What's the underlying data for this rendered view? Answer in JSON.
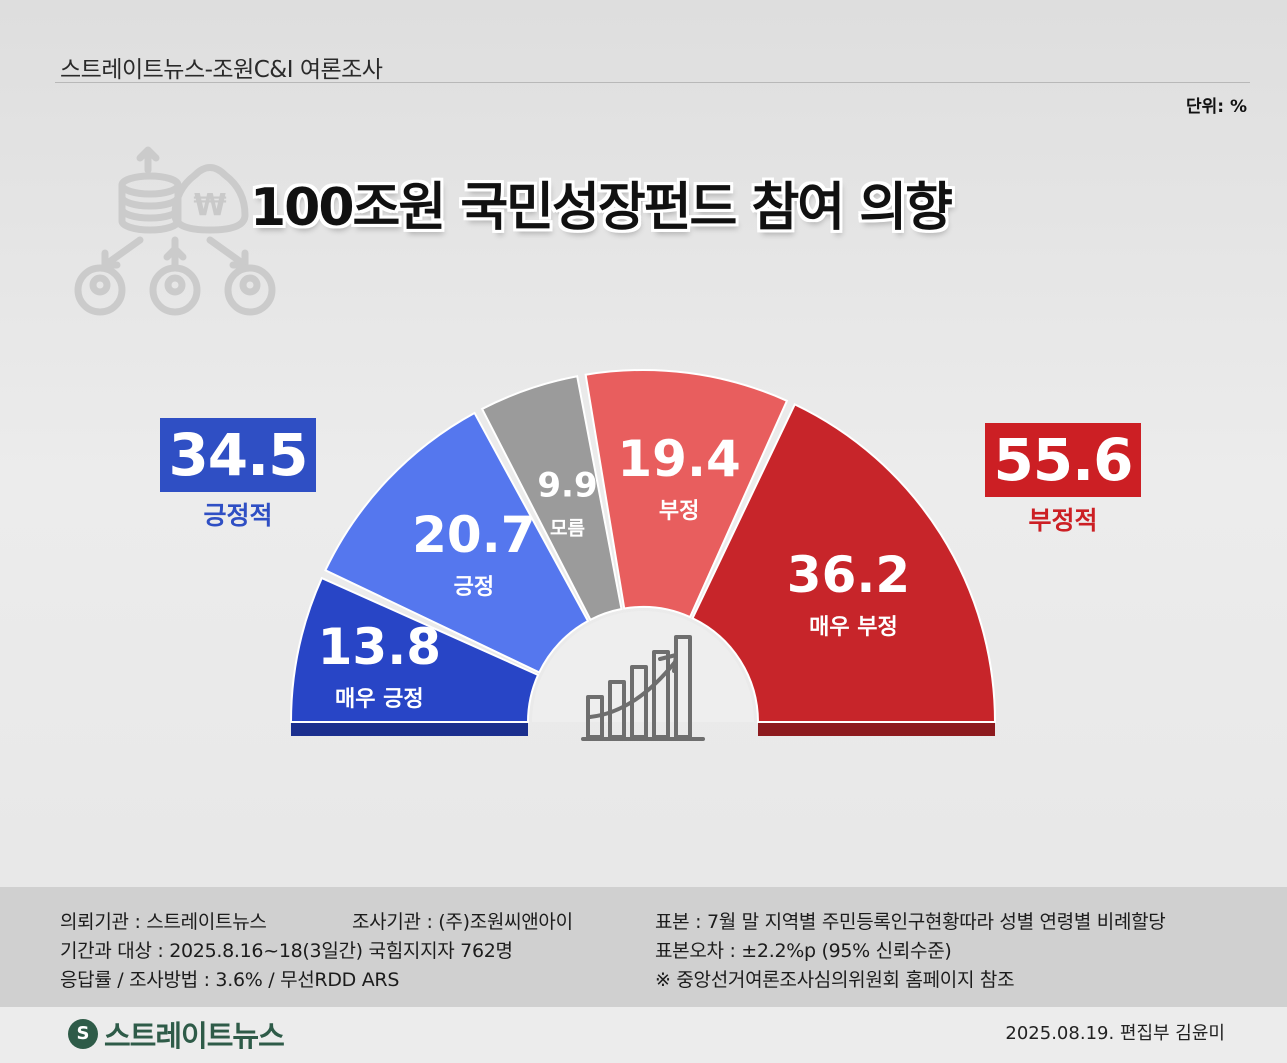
{
  "header": {
    "source": "스트레이트뉴스-조원C&I 여론조사",
    "unit": "단위: %"
  },
  "title": "100조원 국민성장펀드 참여 의향",
  "totals": {
    "positive": {
      "value": "34.5",
      "label": "긍정적"
    },
    "negative": {
      "value": "55.6",
      "label": "부정적"
    }
  },
  "colors": {
    "very_positive": "#2845c6",
    "positive": "#5577ee",
    "unknown": "#9b9b9b",
    "negative": "#e85e5e",
    "very_negative": "#c7252a"
  },
  "chart_data": {
    "type": "pie",
    "title": "100조원 국민성장펀드 참여 의향",
    "categories": [
      "매우 긍정",
      "긍정",
      "모름",
      "부정",
      "매우 부정"
    ],
    "values": [
      13.8,
      20.7,
      9.9,
      19.4,
      36.2
    ],
    "value_labels": [
      "13.8",
      "20.7",
      "9.9",
      "19.4",
      "36.2"
    ],
    "unit": "%",
    "shape": "semicircle"
  },
  "footer": {
    "client": "의뢰기관 : 스트레이트뉴스",
    "agency": "조사기관 : (주)조원씨앤아이",
    "period": "기간과 대상 : 2025.8.16~18(3일간) 국힘지지자 762명",
    "method": "응답률 / 조사방법 : 3.6% / 무선RDD ARS",
    "sample": "표본 : 7월 말 지역별 주민등록인구현황따라 성별 연령별 비례할당",
    "error": "표본오차 : ±2.2%p (95% 신뢰수준)",
    "note": "※ 중앙선거여론조사심의위원회 홈페이지 참조"
  },
  "brand": {
    "logo_text": "스트레이트뉴스",
    "logo_mark": "S"
  },
  "credit": "2025.08.19. 편집부 김윤미",
  "icons": {
    "background": "money-investment-icon",
    "center": "growth-chart-icon"
  }
}
